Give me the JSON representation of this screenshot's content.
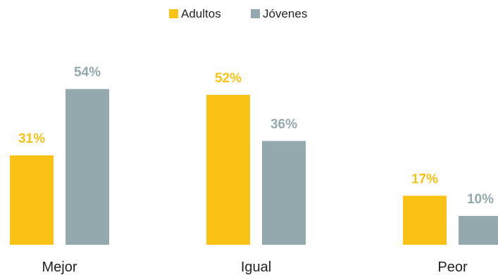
{
  "chart_data": {
    "type": "bar",
    "title": "",
    "xlabel": "",
    "ylabel": "",
    "categories": [
      "Mejor",
      "Igual",
      "Peor"
    ],
    "series": [
      {
        "name": "Adultos",
        "values": [
          31,
          52,
          17
        ],
        "color": "#F9C214"
      },
      {
        "name": "Jóvenes",
        "values": [
          54,
          36,
          10
        ],
        "color": "#94A9AE"
      }
    ],
    "value_suffix": "%",
    "ylim": [
      0,
      60
    ],
    "grid": false,
    "legend_position": "top-center"
  }
}
